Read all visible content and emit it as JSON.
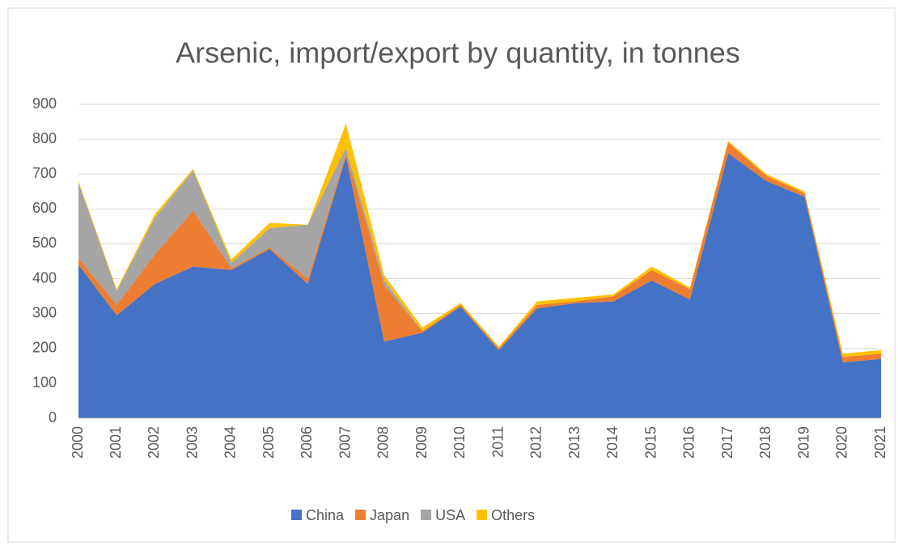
{
  "chart_data": {
    "type": "stacked_area",
    "title": "Arsenic, import/export by quantity, in tonnes",
    "categories": [
      "2000",
      "2001",
      "2002",
      "2003",
      "2004",
      "2005",
      "2006",
      "2007",
      "2008",
      "2009",
      "2010",
      "2011",
      "2012",
      "2013",
      "2014",
      "2015",
      "2016",
      "2017",
      "2018",
      "2019",
      "2020",
      "2021"
    ],
    "series": [
      {
        "name": "China",
        "color": "#4472c4",
        "values": [
          440,
          295,
          385,
          435,
          425,
          485,
          385,
          750,
          220,
          245,
          320,
          195,
          315,
          330,
          335,
          395,
          340,
          760,
          680,
          635,
          160,
          170
        ]
      },
      {
        "name": "Japan",
        "color": "#ed7d31",
        "values": [
          20,
          30,
          85,
          160,
          5,
          5,
          15,
          10,
          160,
          5,
          5,
          5,
          10,
          5,
          15,
          30,
          30,
          30,
          15,
          10,
          15,
          15
        ]
      },
      {
        "name": "USA",
        "color": "#a5a5a5",
        "values": [
          215,
          40,
          105,
          115,
          15,
          55,
          155,
          15,
          15,
          0,
          0,
          0,
          0,
          0,
          0,
          0,
          0,
          0,
          0,
          0,
          0,
          0
        ]
      },
      {
        "name": "Others",
        "color": "#ffc000",
        "values": [
          5,
          5,
          10,
          5,
          10,
          15,
          0,
          70,
          15,
          10,
          5,
          5,
          10,
          10,
          5,
          10,
          5,
          5,
          5,
          5,
          10,
          10
        ]
      }
    ],
    "ylim": [
      0,
      900
    ],
    "yticks": [
      0,
      100,
      200,
      300,
      400,
      500,
      600,
      700,
      800,
      900
    ],
    "grid": true,
    "legend": "bottom"
  }
}
